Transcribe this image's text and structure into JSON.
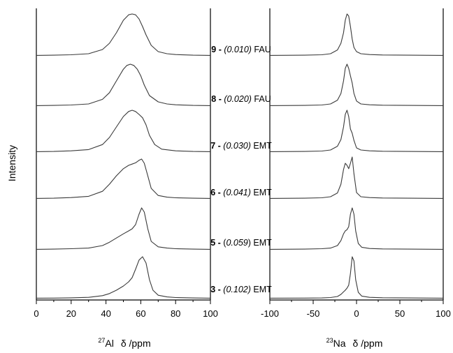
{
  "y_axis_title": "Intensity",
  "panels": [
    {
      "id": "al",
      "isotope": "27",
      "nucleus": "Al",
      "unit_label": "δ /ppm"
    },
    {
      "id": "na",
      "isotope": "23",
      "nucleus": "Na",
      "unit_label": "δ /ppm"
    }
  ],
  "chart_data": [
    {
      "type": "line",
      "xlabel": "27Al δ /ppm",
      "ylabel": "Intensity",
      "xlim": [
        0,
        100
      ],
      "xticks": [
        "0",
        "20",
        "40",
        "60",
        "80",
        "100"
      ],
      "series": [
        {
          "name": "9 - (0.010) FAU",
          "x": [
            0,
            10,
            20,
            30,
            38,
            42,
            46,
            50,
            53,
            55,
            57,
            59,
            61,
            63,
            66,
            70,
            75,
            80,
            90,
            100
          ],
          "y": [
            0.01,
            0.015,
            0.025,
            0.05,
            0.15,
            0.3,
            0.55,
            0.85,
            0.98,
            1.0,
            0.98,
            0.88,
            0.7,
            0.5,
            0.25,
            0.1,
            0.05,
            0.03,
            0.015,
            0.01
          ]
        },
        {
          "name": "8 - (0.020) FAU",
          "x": [
            0,
            10,
            20,
            30,
            38,
            42,
            46,
            50,
            52,
            54,
            56,
            58,
            60,
            62,
            65,
            70,
            75,
            80,
            90,
            100
          ],
          "y": [
            0.01,
            0.015,
            0.025,
            0.05,
            0.16,
            0.32,
            0.6,
            0.88,
            0.97,
            1.0,
            0.97,
            0.88,
            0.72,
            0.5,
            0.25,
            0.1,
            0.05,
            0.03,
            0.015,
            0.01
          ]
        },
        {
          "name": "7 - (0.030) EMT",
          "x": [
            0,
            10,
            20,
            30,
            38,
            42,
            46,
            50,
            53,
            55,
            57,
            59,
            61,
            63,
            65,
            68,
            72,
            80,
            90,
            100
          ],
          "y": [
            0.01,
            0.015,
            0.03,
            0.06,
            0.18,
            0.35,
            0.6,
            0.85,
            0.97,
            1.0,
            0.97,
            0.9,
            0.82,
            0.65,
            0.4,
            0.18,
            0.07,
            0.03,
            0.015,
            0.01
          ]
        },
        {
          "name": "6 - (0.041) EMT",
          "x": [
            0,
            10,
            20,
            30,
            38,
            42,
            46,
            50,
            53,
            55,
            57,
            59,
            60.5,
            62,
            64,
            66,
            70,
            75,
            80,
            90,
            100
          ],
          "y": [
            0.01,
            0.015,
            0.03,
            0.06,
            0.18,
            0.35,
            0.55,
            0.72,
            0.8,
            0.83,
            0.86,
            0.92,
            0.95,
            0.85,
            0.55,
            0.25,
            0.08,
            0.04,
            0.025,
            0.015,
            0.01
          ]
        },
        {
          "name": "5 - (0.059) EMT",
          "x": [
            0,
            10,
            20,
            30,
            38,
            42,
            46,
            50,
            53,
            55,
            57,
            59,
            60.5,
            62,
            64,
            66,
            70,
            75,
            80,
            90,
            100
          ],
          "y": [
            0.01,
            0.015,
            0.025,
            0.04,
            0.1,
            0.18,
            0.28,
            0.38,
            0.45,
            0.5,
            0.6,
            0.85,
            1.0,
            0.9,
            0.5,
            0.2,
            0.07,
            0.04,
            0.025,
            0.015,
            0.01
          ]
        },
        {
          "name": "3 - (0.102) EMT",
          "x": [
            0,
            10,
            20,
            30,
            38,
            42,
            46,
            50,
            53,
            55,
            57,
            59,
            61,
            63,
            65,
            67,
            70,
            75,
            80,
            90,
            100
          ],
          "y": [
            0.01,
            0.012,
            0.018,
            0.03,
            0.07,
            0.12,
            0.2,
            0.3,
            0.4,
            0.5,
            0.7,
            0.92,
            1.0,
            0.85,
            0.45,
            0.2,
            0.08,
            0.04,
            0.025,
            0.015,
            0.01
          ]
        }
      ]
    },
    {
      "type": "line",
      "xlabel": "23Na δ /ppm",
      "xlim": [
        -100,
        100
      ],
      "xticks": [
        "-100",
        "-50",
        "0",
        "50",
        "100"
      ],
      "series": [
        {
          "name": "9 - (0.010) FAU",
          "x": [
            -100,
            -60,
            -40,
            -30,
            -22,
            -18,
            -15,
            -13,
            -11,
            -9,
            -7,
            -5,
            -3,
            0,
            5,
            15,
            30,
            60,
            100
          ],
          "y": [
            0.01,
            0.015,
            0.025,
            0.05,
            0.14,
            0.3,
            0.55,
            0.85,
            1.0,
            0.95,
            0.7,
            0.4,
            0.2,
            0.1,
            0.05,
            0.03,
            0.02,
            0.015,
            0.01
          ]
        },
        {
          "name": "8 - (0.020) FAU",
          "x": [
            -100,
            -60,
            -40,
            -30,
            -22,
            -18,
            -15,
            -13,
            -11,
            -9,
            -7,
            -5,
            -3,
            0,
            5,
            15,
            30,
            60,
            100
          ],
          "y": [
            0.01,
            0.015,
            0.025,
            0.05,
            0.14,
            0.3,
            0.6,
            0.9,
            1.0,
            0.9,
            0.72,
            0.55,
            0.3,
            0.12,
            0.05,
            0.03,
            0.02,
            0.015,
            0.01
          ]
        },
        {
          "name": "7 - (0.030) EMT",
          "x": [
            -100,
            -60,
            -40,
            -30,
            -22,
            -18,
            -15,
            -13,
            -11,
            -9,
            -7,
            -5,
            -3,
            0,
            5,
            15,
            30,
            60,
            100
          ],
          "y": [
            0.01,
            0.015,
            0.025,
            0.05,
            0.14,
            0.3,
            0.6,
            0.9,
            1.0,
            0.85,
            0.55,
            0.45,
            0.28,
            0.1,
            0.05,
            0.03,
            0.02,
            0.015,
            0.01
          ]
        },
        {
          "name": "6 - (0.041) EMT",
          "x": [
            -100,
            -60,
            -40,
            -30,
            -22,
            -18,
            -15,
            -13,
            -11,
            -9,
            -7,
            -5,
            -3,
            0,
            5,
            15,
            30,
            60,
            100
          ],
          "y": [
            0.01,
            0.015,
            0.025,
            0.05,
            0.14,
            0.35,
            0.7,
            0.85,
            0.8,
            0.72,
            0.85,
            1.0,
            0.6,
            0.15,
            0.05,
            0.03,
            0.02,
            0.015,
            0.01
          ]
        },
        {
          "name": "5 - (0.059) EMT",
          "x": [
            -100,
            -60,
            -40,
            -30,
            -22,
            -18,
            -15,
            -13,
            -11,
            -9,
            -7,
            -5,
            -3,
            -1,
            2,
            6,
            15,
            30,
            60,
            100
          ],
          "y": [
            0.01,
            0.015,
            0.025,
            0.04,
            0.1,
            0.22,
            0.38,
            0.45,
            0.48,
            0.55,
            0.85,
            1.0,
            0.85,
            0.45,
            0.15,
            0.06,
            0.03,
            0.02,
            0.015,
            0.01
          ]
        },
        {
          "name": "3 - (0.102) EMT",
          "x": [
            -100,
            -60,
            -40,
            -30,
            -22,
            -18,
            -15,
            -13,
            -11,
            -9,
            -7,
            -5,
            -3,
            -1,
            2,
            6,
            15,
            30,
            60,
            100
          ],
          "y": [
            0.01,
            0.012,
            0.015,
            0.025,
            0.05,
            0.1,
            0.16,
            0.2,
            0.25,
            0.32,
            0.6,
            1.0,
            0.9,
            0.45,
            0.15,
            0.06,
            0.03,
            0.02,
            0.015,
            0.01
          ]
        }
      ]
    }
  ],
  "sample_labels": [
    {
      "num": "9",
      "sep": " - ",
      "pre": "",
      "ratio": "(0.010)",
      "post": "",
      "phase": " FAU"
    },
    {
      "num": "8",
      "sep": " - ",
      "pre": "",
      "ratio": "(0.020)",
      "post": "",
      "phase": " FAU"
    },
    {
      "num": "7",
      "sep": " - ",
      "pre": "",
      "ratio": "(0.030)",
      "post": "",
      "phase": " EMT"
    },
    {
      "num": "6",
      "sep": " - ",
      "pre": "",
      "ratio": "(0.041)",
      "post": "",
      "phase": " EMT"
    },
    {
      "num": "5",
      "sep": " - ",
      "pre": "(",
      "ratio": "0.059",
      "post": ")",
      "phase": " EMT"
    },
    {
      "num": "3",
      "sep": " - ",
      "pre": "",
      "ratio": "(0.102)",
      "post": "",
      "phase": " EMT"
    }
  ]
}
